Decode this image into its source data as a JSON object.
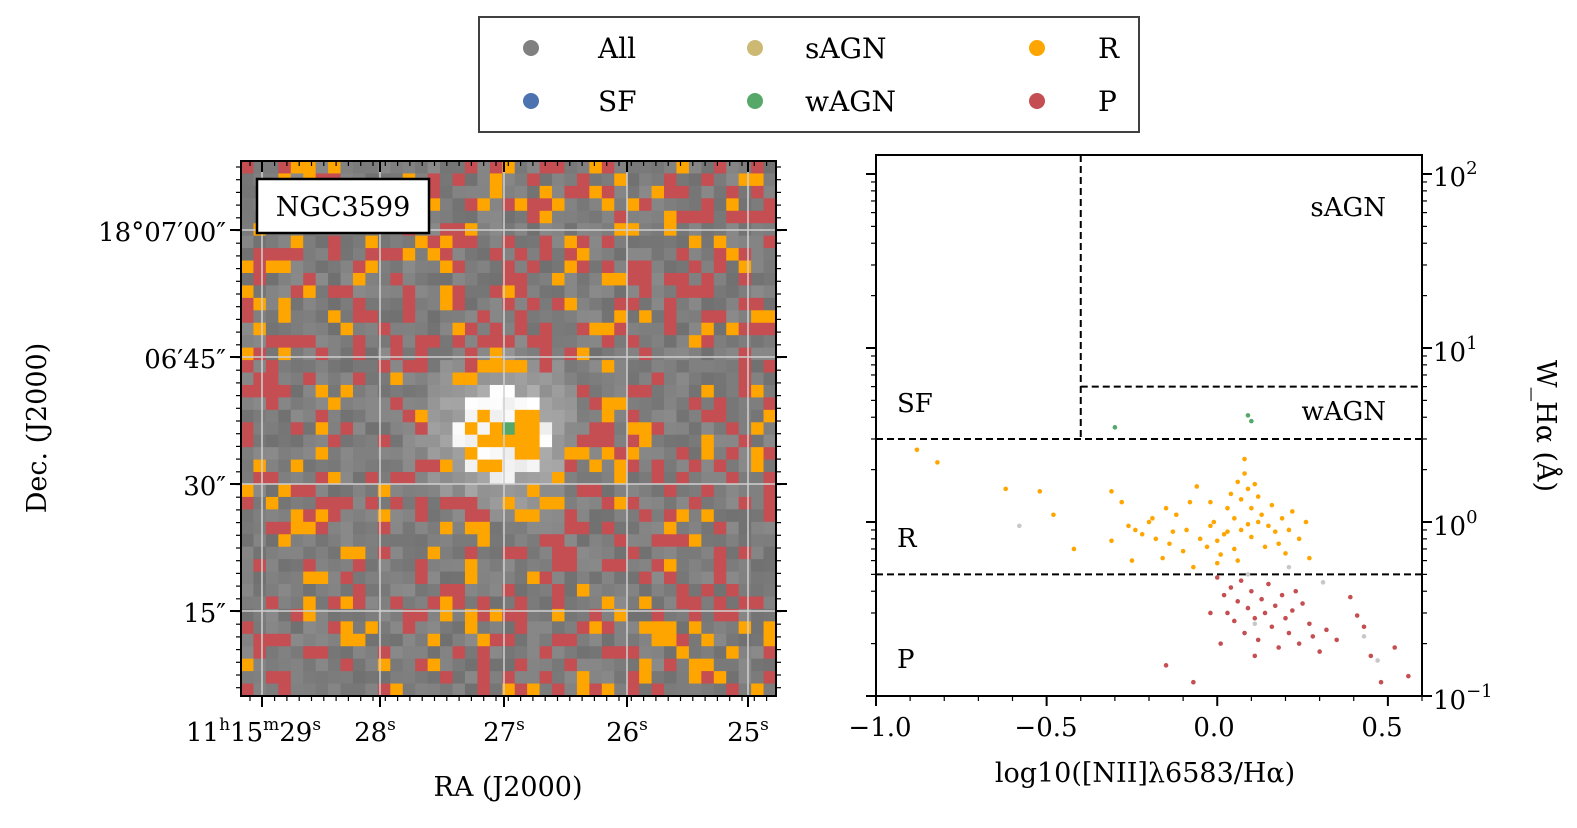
{
  "figure": {
    "legend": {
      "entries": [
        {
          "label": "All",
          "color": "#808080"
        },
        {
          "label": "sAGN",
          "color": "#CCB974"
        },
        {
          "label": "R",
          "color": "#FFA500"
        },
        {
          "label": "SF",
          "color": "#4C72B0"
        },
        {
          "label": "wAGN",
          "color": "#55A868"
        },
        {
          "label": "P",
          "color": "#C44E52"
        }
      ]
    },
    "map_panel": {
      "galaxy_label": "NGC3599",
      "xlabel": "RA (J2000)",
      "ylabel": "Dec. (J2000)",
      "ra_ticks": [
        {
          "label": "11h15m29s",
          "h": "11",
          "m": "15",
          "s": "29"
        },
        {
          "label": "28s",
          "s": "28"
        },
        {
          "label": "27s",
          "s": "27"
        },
        {
          "label": "26s",
          "s": "26"
        },
        {
          "label": "25s",
          "s": "25"
        }
      ],
      "dec_ticks": [
        {
          "label": "18°07′00″"
        },
        {
          "label": "06′45″"
        },
        {
          "label": "30″"
        },
        {
          "label": "15″"
        }
      ]
    }
  },
  "chart_data": {
    "type": "scatter",
    "title": "",
    "xlabel": "log10([NII]λ6583/Hα)",
    "ylabel": "W_Hα (Å)",
    "xlim": [
      -1.0,
      0.6
    ],
    "ylim": [
      0.1,
      100
    ],
    "yscale": "log",
    "xticks": [
      "−1.0",
      "−0.5",
      "0.0",
      "0.5"
    ],
    "yticks": [
      {
        "value": 100,
        "base": "10",
        "exp": "2"
      },
      {
        "value": 10,
        "base": "10",
        "exp": "1"
      },
      {
        "value": 1,
        "base": "10",
        "exp": "0"
      },
      {
        "value": 0.1,
        "base": "10",
        "exp": "−1"
      }
    ],
    "region_labels": [
      "sAGN",
      "wAGN",
      "SF",
      "R",
      "P"
    ],
    "dividers": {
      "sf_agn_x": -0.4,
      "strong_weak_y": 6,
      "sf_r_y": 3,
      "r_p_y": 0.5
    },
    "series": [
      {
        "name": "R",
        "color": "#FFA500",
        "points": [
          [
            -0.88,
            2.6
          ],
          [
            -0.82,
            2.2
          ],
          [
            -0.62,
            1.55
          ],
          [
            -0.52,
            1.5
          ],
          [
            -0.48,
            1.1
          ],
          [
            -0.42,
            0.7
          ],
          [
            -0.31,
            0.78
          ],
          [
            -0.31,
            1.5
          ],
          [
            -0.28,
            1.3
          ],
          [
            -0.26,
            0.95
          ],
          [
            -0.24,
            0.9
          ],
          [
            -0.22,
            0.85
          ],
          [
            -0.2,
            1.0
          ],
          [
            -0.19,
            1.05
          ],
          [
            -0.18,
            0.8
          ],
          [
            -0.16,
            0.62
          ],
          [
            -0.14,
            0.75
          ],
          [
            -0.13,
            0.88
          ],
          [
            -0.12,
            1.1
          ],
          [
            -0.1,
            0.68
          ],
          [
            -0.09,
            0.9
          ],
          [
            -0.08,
            1.3
          ],
          [
            -0.06,
            1.6
          ],
          [
            -0.05,
            0.8
          ],
          [
            -0.03,
            0.72
          ],
          [
            -0.02,
            0.95
          ],
          [
            -0.01,
            1.0
          ],
          [
            0.0,
            0.78
          ],
          [
            0.01,
            0.65
          ],
          [
            0.02,
            0.85
          ],
          [
            0.03,
            1.2
          ],
          [
            0.04,
            1.45
          ],
          [
            0.05,
            1.05
          ],
          [
            0.05,
            0.7
          ],
          [
            0.06,
            1.7
          ],
          [
            0.07,
            1.35
          ],
          [
            0.07,
            0.9
          ],
          [
            0.08,
            1.9
          ],
          [
            0.08,
            2.3
          ],
          [
            0.09,
            1.55
          ],
          [
            0.1,
            1.2
          ],
          [
            0.1,
            0.82
          ],
          [
            0.11,
            1.65
          ],
          [
            0.12,
            1.4
          ],
          [
            0.12,
            1.0
          ],
          [
            0.13,
            1.1
          ],
          [
            0.14,
            0.72
          ],
          [
            0.15,
            0.95
          ],
          [
            0.16,
            1.25
          ],
          [
            0.17,
            0.88
          ],
          [
            0.18,
            0.75
          ],
          [
            0.19,
            1.05
          ],
          [
            0.2,
            0.66
          ],
          [
            0.21,
            0.9
          ],
          [
            0.22,
            1.15
          ],
          [
            0.24,
            0.8
          ],
          [
            0.26,
            1.0
          ],
          [
            0.27,
            0.62
          ],
          [
            -0.02,
            1.3
          ],
          [
            0.0,
            0.58
          ],
          [
            0.03,
            0.88
          ],
          [
            0.06,
            0.6
          ],
          [
            0.09,
            0.97
          ],
          [
            -0.15,
            1.2
          ],
          [
            -0.25,
            0.6
          ],
          [
            -0.07,
            0.55
          ]
        ]
      },
      {
        "name": "P",
        "color": "#C44E52",
        "points": [
          [
            -0.07,
            0.12
          ],
          [
            0.0,
            0.48
          ],
          [
            0.02,
            0.38
          ],
          [
            0.03,
            0.3
          ],
          [
            0.04,
            0.42
          ],
          [
            0.05,
            0.27
          ],
          [
            0.06,
            0.35
          ],
          [
            0.07,
            0.46
          ],
          [
            0.08,
            0.23
          ],
          [
            0.09,
            0.32
          ],
          [
            0.1,
            0.4
          ],
          [
            0.11,
            0.28
          ],
          [
            0.12,
            0.21
          ],
          [
            0.13,
            0.36
          ],
          [
            0.14,
            0.3
          ],
          [
            0.15,
            0.44
          ],
          [
            0.16,
            0.25
          ],
          [
            0.17,
            0.33
          ],
          [
            0.18,
            0.19
          ],
          [
            0.19,
            0.38
          ],
          [
            0.2,
            0.28
          ],
          [
            0.21,
            0.23
          ],
          [
            0.22,
            0.31
          ],
          [
            0.23,
            0.4
          ],
          [
            0.24,
            0.2
          ],
          [
            0.25,
            0.34
          ],
          [
            0.27,
            0.26
          ],
          [
            0.28,
            0.22
          ],
          [
            0.3,
            0.18
          ],
          [
            0.32,
            0.24
          ],
          [
            0.35,
            0.21
          ],
          [
            0.39,
            0.37
          ],
          [
            0.41,
            0.29
          ],
          [
            0.43,
            0.25
          ],
          [
            0.45,
            0.17
          ],
          [
            0.48,
            0.12
          ],
          [
            0.52,
            0.19
          ],
          [
            0.56,
            0.13
          ],
          [
            -0.15,
            0.15
          ],
          [
            -0.02,
            0.3
          ],
          [
            0.01,
            0.2
          ],
          [
            0.11,
            0.17
          ]
        ]
      },
      {
        "name": "wAGN",
        "color": "#55A868",
        "points": [
          [
            -0.3,
            3.5
          ],
          [
            0.09,
            4.1
          ],
          [
            0.1,
            3.8
          ]
        ]
      },
      {
        "name": "All",
        "color": "#C8C8C8",
        "points": [
          [
            -0.58,
            0.95
          ],
          [
            0.21,
            0.55
          ],
          [
            0.31,
            0.45
          ],
          [
            0.47,
            0.16
          ],
          [
            0.43,
            0.22
          ],
          [
            0.09,
            0.5
          ],
          [
            0.11,
            0.26
          ]
        ]
      }
    ]
  }
}
